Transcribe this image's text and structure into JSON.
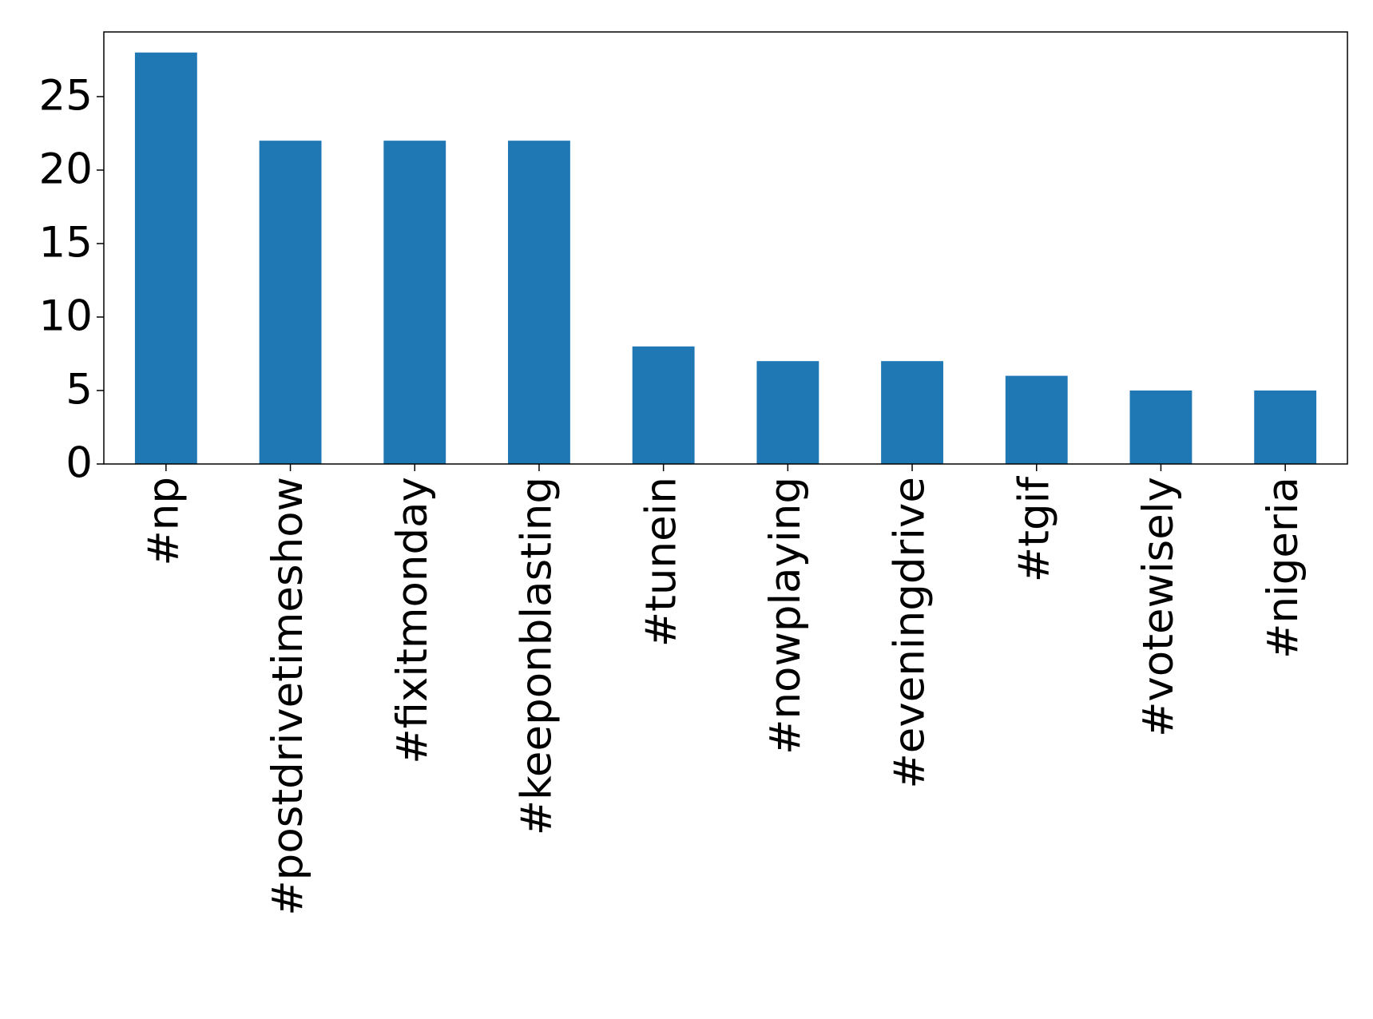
{
  "chart_data": {
    "type": "bar",
    "categories": [
      "#np",
      "#postdrivetimeshow",
      "#fixitmonday",
      "#keeponblasting",
      "#tunein",
      "#nowplaying",
      "#eveningdrive",
      "#tgif",
      "#votewisely",
      "#nigeria"
    ],
    "values": [
      28,
      22,
      22,
      22,
      8,
      7,
      7,
      6,
      5,
      5
    ],
    "color": "#1f77b4",
    "ylim": [
      0,
      29.4
    ],
    "yticks": [
      0,
      5,
      10,
      15,
      20,
      25
    ],
    "grid": false
  }
}
